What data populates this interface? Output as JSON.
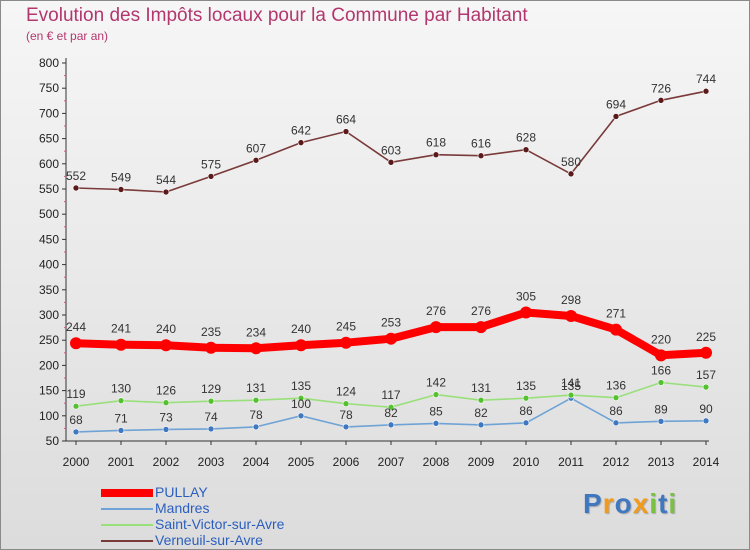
{
  "header": {
    "title": "Evolution des Impôts locaux pour la Commune par Habitant",
    "subtitle": "(en € et par an)"
  },
  "colors": {
    "title": "#b2376e",
    "axis": "#333333",
    "legend_text": "#2b5fbf"
  },
  "chart_data": {
    "type": "line",
    "x": [
      "2000",
      "2001",
      "2002",
      "2003",
      "2004",
      "2005",
      "2006",
      "2007",
      "2008",
      "2009",
      "2010",
      "2011",
      "2012",
      "2013",
      "2014"
    ],
    "ylim": [
      50,
      800
    ],
    "yticks": [
      50,
      100,
      150,
      200,
      250,
      300,
      350,
      400,
      450,
      500,
      550,
      600,
      650,
      700,
      750,
      800
    ],
    "grid": false,
    "legend_position": "bottom-left",
    "series": [
      {
        "name": "PULLAY",
        "color": "#ff0000",
        "line_color": "#ff0000",
        "point_color": "#ff0000",
        "emphasis": true,
        "values": [
          244,
          241,
          240,
          235,
          234,
          240,
          245,
          253,
          276,
          276,
          305,
          298,
          271,
          220,
          225
        ]
      },
      {
        "name": "Mandres",
        "color": "#6fa3d6",
        "line_color": "#6fa3d6",
        "point_color": "#3f78c0",
        "emphasis": false,
        "values": [
          68,
          71,
          73,
          74,
          78,
          100,
          78,
          82,
          85,
          82,
          86,
          135,
          86,
          89,
          90
        ]
      },
      {
        "name": "Saint-Victor-sur-Avre",
        "color": "#99e07a",
        "line_color": "#99e07a",
        "point_color": "#55c030",
        "emphasis": false,
        "values": [
          119,
          130,
          126,
          129,
          131,
          135,
          124,
          117,
          142,
          131,
          135,
          141,
          136,
          166,
          157
        ]
      },
      {
        "name": "Verneuil-sur-Avre",
        "color": "#7a3a3a",
        "line_color": "#7a3a3a",
        "point_color": "#5a1a1a",
        "emphasis": false,
        "values": [
          552,
          549,
          544,
          575,
          607,
          642,
          664,
          603,
          618,
          616,
          628,
          580,
          694,
          726,
          744
        ]
      }
    ]
  },
  "logo": {
    "letters": [
      "P",
      "r",
      "o",
      "x",
      "i",
      "t",
      "i"
    ],
    "colors": [
      "#3f78c0",
      "#f29a1c",
      "#3f78c0",
      "#f29a1c",
      "#7ac143",
      "#3f78c0",
      "#7ac143"
    ]
  }
}
